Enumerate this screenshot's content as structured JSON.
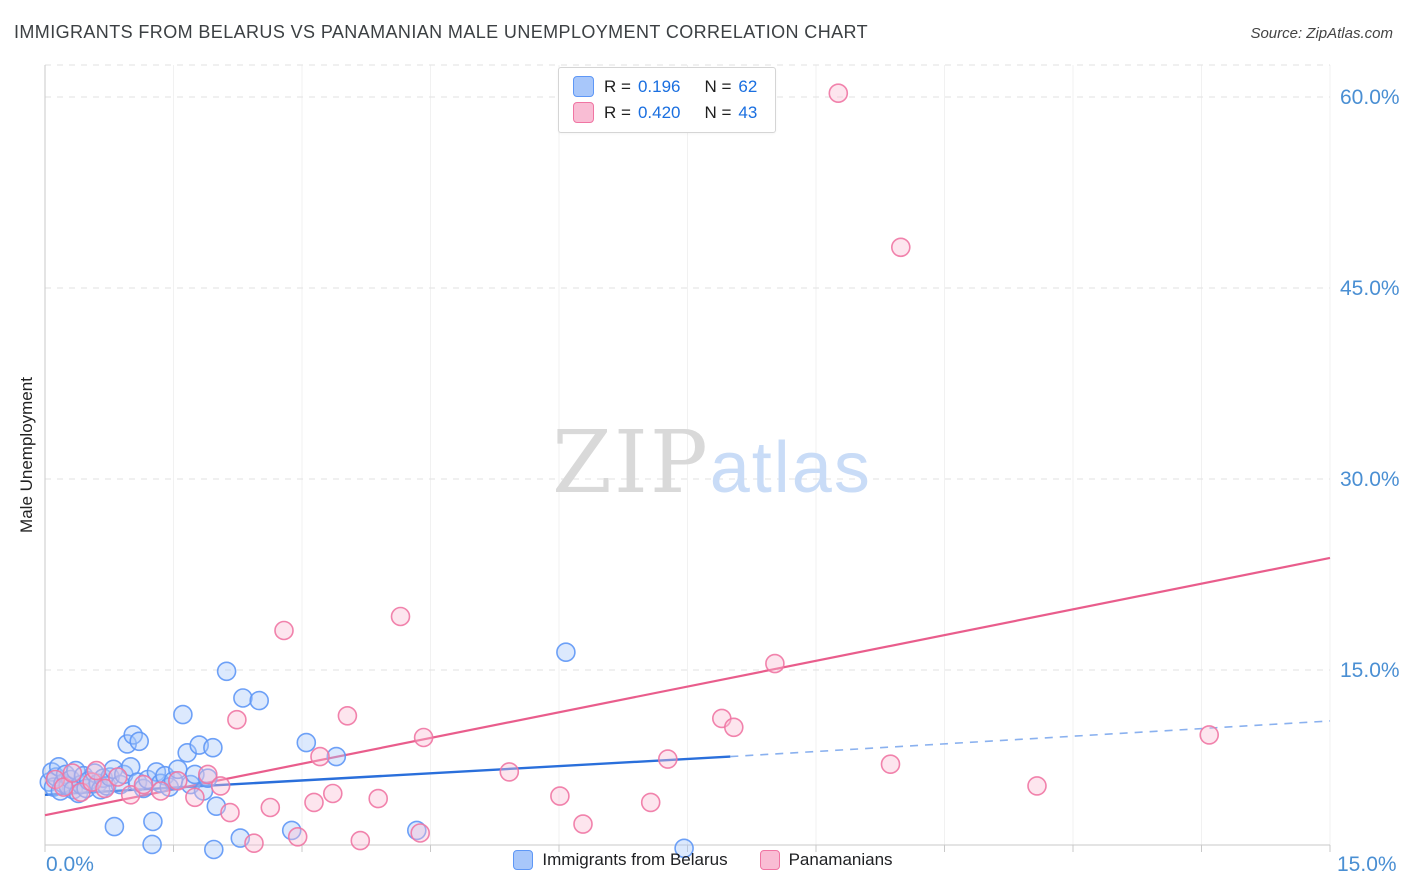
{
  "header": {
    "source": "Source: ZipAtlas.com"
  },
  "chart_data": {
    "type": "scatter",
    "title": "IMMIGRANTS FROM BELARUS VS PANAMANIAN MALE UNEMPLOYMENT CORRELATION CHART",
    "ylabel": "Male Unemployment",
    "xlim": [
      0,
      15
    ],
    "ylim": [
      0,
      62.5
    ],
    "grid": "horizontal-dashed",
    "legend_position": "top-center",
    "x_axis_labels": {
      "left": "0.0%",
      "right": "15.0%"
    },
    "x_ticks": [
      0,
      1.5,
      3,
      4.5,
      6,
      7.5,
      9,
      10.5,
      12,
      13.5,
      15
    ],
    "y_ticks": [
      {
        "value": 60,
        "label": "60.0%"
      },
      {
        "value": 45,
        "label": "45.0%"
      },
      {
        "value": 30,
        "label": "30.0%"
      },
      {
        "value": 15,
        "label": "15.0%"
      }
    ],
    "colors": {
      "grid": "#e2e2e2",
      "axis": "#c9c9c9",
      "tick_label": "#4a8fd3",
      "value_text": "#1a6fe0"
    },
    "watermark": {
      "part1": "ZIP",
      "part2": "atlas",
      "zip_color": "#d9d9d9",
      "atlas_color": "#c9dcf7"
    },
    "legend": {
      "rows": [
        {
          "series": "Immigrants from Belarus",
          "r_label": "R =",
          "r_value": "0.196",
          "n_label": "N =",
          "n_value": "62"
        },
        {
          "series": "Panamanians",
          "r_label": "R =",
          "r_value": "0.420",
          "n_label": "N =",
          "n_value": "43"
        }
      ]
    },
    "bottom_legend": [
      {
        "label": "Immigrants from Belarus"
      },
      {
        "label": "Panamanians"
      }
    ],
    "series": [
      {
        "key": "belarus",
        "name": "Immigrants from Belarus",
        "fill": "#a8c7fa",
        "stroke": "#5e97f6",
        "trend": {
          "segments": [
            {
              "from": [
                0,
                5.2
              ],
              "to": [
                8,
                8.2
              ],
              "color": "#2a6fdb",
              "width": 2.4,
              "dashed": false
            },
            {
              "from": [
                8,
                8.2
              ],
              "to": [
                15,
                11.0
              ],
              "color": "#8ab1ef",
              "width": 1.6,
              "dashed": true
            }
          ]
        },
        "points": [
          [
            0.05,
            6.2
          ],
          [
            0.08,
            7.0
          ],
          [
            0.1,
            5.8
          ],
          [
            0.13,
            6.6
          ],
          [
            0.16,
            7.4
          ],
          [
            0.18,
            5.5
          ],
          [
            0.21,
            6.1
          ],
          [
            0.24,
            6.8
          ],
          [
            0.27,
            5.9
          ],
          [
            0.3,
            6.4
          ],
          [
            0.33,
            5.6
          ],
          [
            0.36,
            7.1
          ],
          [
            0.39,
            5.3
          ],
          [
            0.42,
            6.0
          ],
          [
            0.45,
            6.7
          ],
          [
            0.48,
            5.7
          ],
          [
            0.51,
            6.3
          ],
          [
            7.46,
            1.0
          ],
          [
            0.58,
            6.9
          ],
          [
            0.62,
            6.1
          ],
          [
            0.65,
            5.6
          ],
          [
            0.68,
            6.5
          ],
          [
            0.72,
            5.9
          ],
          [
            0.76,
            6.6
          ],
          [
            0.8,
            7.2
          ],
          [
            0.81,
            2.7
          ],
          [
            0.88,
            6.0
          ],
          [
            0.92,
            6.8
          ],
          [
            0.96,
            9.2
          ],
          [
            1.0,
            7.4
          ],
          [
            1.03,
            9.9
          ],
          [
            1.08,
            6.2
          ],
          [
            1.1,
            9.4
          ],
          [
            1.15,
            5.7
          ],
          [
            1.2,
            6.4
          ],
          [
            1.26,
            3.1
          ],
          [
            1.25,
            1.3
          ],
          [
            1.3,
            7.0
          ],
          [
            1.35,
            6.1
          ],
          [
            1.4,
            6.7
          ],
          [
            1.45,
            5.8
          ],
          [
            1.5,
            6.3
          ],
          [
            1.55,
            7.2
          ],
          [
            1.61,
            11.5
          ],
          [
            1.66,
            8.5
          ],
          [
            1.7,
            6.0
          ],
          [
            1.75,
            6.8
          ],
          [
            1.8,
            9.1
          ],
          [
            1.85,
            5.5
          ],
          [
            1.9,
            6.5
          ],
          [
            1.96,
            8.9
          ],
          [
            1.97,
            0.9
          ],
          [
            2.0,
            4.3
          ],
          [
            2.12,
            14.9
          ],
          [
            2.28,
            1.8
          ],
          [
            2.31,
            12.8
          ],
          [
            2.5,
            12.6
          ],
          [
            2.88,
            2.4
          ],
          [
            3.05,
            9.3
          ],
          [
            3.4,
            8.2
          ],
          [
            4.34,
            2.4
          ],
          [
            6.08,
            16.4
          ]
        ]
      },
      {
        "key": "panamanians",
        "name": "Panamanians",
        "fill": "#f9bdd4",
        "stroke": "#f075a3",
        "trend": {
          "segments": [
            {
              "from": [
                0,
                3.6
              ],
              "to": [
                15,
                23.8
              ],
              "color": "#e95d8c",
              "width": 2.2,
              "dashed": false
            }
          ]
        },
        "points": [
          [
            0.12,
            6.4
          ],
          [
            0.22,
            5.8
          ],
          [
            0.32,
            6.9
          ],
          [
            0.42,
            5.4
          ],
          [
            0.55,
            6.2
          ],
          [
            0.6,
            7.1
          ],
          [
            0.7,
            5.7
          ],
          [
            0.85,
            6.6
          ],
          [
            1.0,
            5.2
          ],
          [
            1.15,
            6.0
          ],
          [
            1.35,
            5.5
          ],
          [
            1.55,
            6.3
          ],
          [
            1.75,
            5.0
          ],
          [
            1.9,
            6.8
          ],
          [
            2.05,
            5.9
          ],
          [
            2.16,
            3.8
          ],
          [
            2.24,
            11.1
          ],
          [
            2.44,
            1.4
          ],
          [
            2.63,
            4.2
          ],
          [
            2.79,
            18.1
          ],
          [
            2.95,
            1.9
          ],
          [
            3.14,
            4.6
          ],
          [
            3.21,
            8.2
          ],
          [
            3.36,
            5.3
          ],
          [
            3.53,
            11.4
          ],
          [
            3.68,
            1.6
          ],
          [
            3.89,
            4.9
          ],
          [
            4.15,
            19.2
          ],
          [
            4.38,
            2.2
          ],
          [
            4.42,
            9.7
          ],
          [
            5.42,
            7.0
          ],
          [
            6.01,
            5.1
          ],
          [
            6.28,
            2.9
          ],
          [
            7.07,
            4.6
          ],
          [
            7.27,
            8.0
          ],
          [
            7.9,
            11.2
          ],
          [
            8.04,
            10.5
          ],
          [
            8.52,
            15.5
          ],
          [
            9.26,
            60.3
          ],
          [
            9.87,
            7.6
          ],
          [
            9.99,
            48.2
          ],
          [
            11.58,
            5.9
          ],
          [
            13.59,
            9.9
          ]
        ]
      }
    ]
  }
}
